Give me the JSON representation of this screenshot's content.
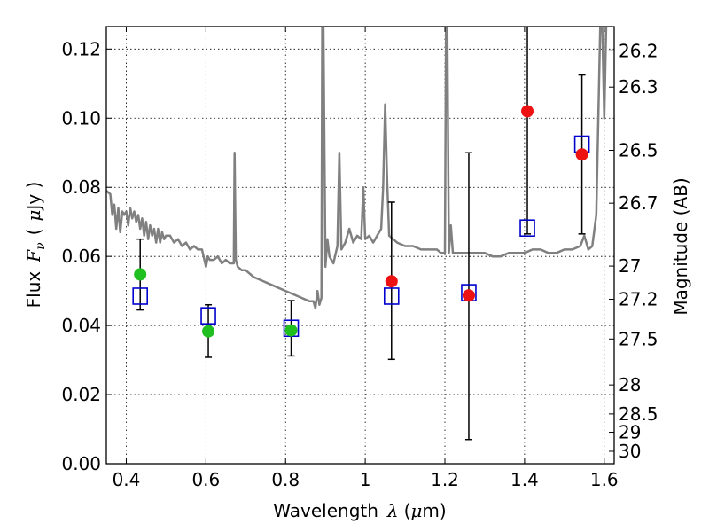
{
  "chart_data": {
    "type": "scatter",
    "xlabel_main": "Wavelength",
    "xlabel_symbol": "λ",
    "xlabel_unit_open": "(",
    "xlabel_unit_mu": "μ",
    "xlabel_unit_rest": "m)",
    "ylabel_main": "Flux",
    "ylabel_symbol": "F",
    "ylabel_subscript": "ν",
    "ylabel_unit_open": "(",
    "ylabel_unit_mu": "μ",
    "ylabel_unit_rest": "Jy )",
    "y2label": "Magnitude (AB)",
    "xlim": [
      0.35,
      1.625
    ],
    "ylim": [
      0.0,
      0.1265
    ],
    "grid": true,
    "x_ticks": [
      0.4,
      0.6,
      0.8,
      1.0,
      1.2,
      1.4,
      1.6
    ],
    "x_tick_labels": [
      "0.4",
      "0.6",
      "0.8",
      "1",
      "1.2",
      "1.4",
      "1.6"
    ],
    "y_ticks": [
      0.0,
      0.02,
      0.04,
      0.06,
      0.08,
      0.1,
      0.12
    ],
    "y_tick_labels": [
      "0.00",
      "0.02",
      "0.04",
      "0.06",
      "0.08",
      "0.10",
      "0.12"
    ],
    "mag_ticks": [
      {
        "label": "26.2",
        "flux": 0.1195
      },
      {
        "label": "26.3",
        "flux": 0.109
      },
      {
        "label": "26.5",
        "flux": 0.0907
      },
      {
        "label": "26.7",
        "flux": 0.0754
      },
      {
        "label": "27",
        "flux": 0.0572
      },
      {
        "label": "27.2",
        "flux": 0.0476
      },
      {
        "label": "27.5",
        "flux": 0.0361
      },
      {
        "label": "28",
        "flux": 0.0228
      },
      {
        "label": "28.5",
        "flux": 0.0144
      },
      {
        "label": "29",
        "flux": 0.0091
      },
      {
        "label": "30",
        "flux": 0.0036
      }
    ],
    "colors": {
      "model": "#808080",
      "green": "#1fbf1f",
      "red": "#ee1111",
      "square": "#0000cc",
      "errorbar": "#000000"
    },
    "model_spectrum": {
      "x": [
        0.35,
        0.36,
        0.365,
        0.37,
        0.375,
        0.38,
        0.385,
        0.39,
        0.395,
        0.4,
        0.405,
        0.41,
        0.415,
        0.42,
        0.425,
        0.43,
        0.435,
        0.44,
        0.445,
        0.45,
        0.455,
        0.46,
        0.465,
        0.47,
        0.475,
        0.48,
        0.485,
        0.49,
        0.495,
        0.5,
        0.51,
        0.52,
        0.53,
        0.54,
        0.55,
        0.56,
        0.57,
        0.58,
        0.59,
        0.6,
        0.605,
        0.61,
        0.62,
        0.63,
        0.64,
        0.65,
        0.66,
        0.67,
        0.672,
        0.675,
        0.68,
        0.69,
        0.7,
        0.72,
        0.74,
        0.76,
        0.78,
        0.8,
        0.82,
        0.84,
        0.86,
        0.87,
        0.875,
        0.88,
        0.885,
        0.89,
        0.892,
        0.895,
        0.9,
        0.905,
        0.91,
        0.92,
        0.93,
        0.935,
        0.94,
        0.95,
        0.96,
        0.97,
        0.98,
        0.99,
        0.995,
        1.0,
        1.01,
        1.02,
        1.03,
        1.04,
        1.045,
        1.05,
        1.055,
        1.06,
        1.07,
        1.08,
        1.1,
        1.12,
        1.14,
        1.16,
        1.18,
        1.19,
        1.2,
        1.203,
        1.206,
        1.21,
        1.215,
        1.22,
        1.24,
        1.26,
        1.28,
        1.3,
        1.32,
        1.34,
        1.36,
        1.38,
        1.4,
        1.42,
        1.44,
        1.46,
        1.48,
        1.5,
        1.52,
        1.54,
        1.55,
        1.56,
        1.57,
        1.58,
        1.59,
        1.595,
        1.6,
        1.605,
        1.61,
        1.62
      ],
      "y": [
        0.079,
        0.078,
        0.072,
        0.075,
        0.068,
        0.074,
        0.067,
        0.073,
        0.072,
        0.073,
        0.069,
        0.074,
        0.071,
        0.073,
        0.07,
        0.072,
        0.068,
        0.071,
        0.066,
        0.07,
        0.065,
        0.069,
        0.066,
        0.068,
        0.064,
        0.068,
        0.064,
        0.067,
        0.065,
        0.066,
        0.066,
        0.064,
        0.065,
        0.063,
        0.064,
        0.062,
        0.063,
        0.062,
        0.062,
        0.057,
        0.06,
        0.059,
        0.059,
        0.06,
        0.058,
        0.059,
        0.058,
        0.058,
        0.09,
        0.059,
        0.057,
        0.056,
        0.056,
        0.054,
        0.053,
        0.052,
        0.051,
        0.05,
        0.049,
        0.048,
        0.047,
        0.047,
        0.045,
        0.05,
        0.046,
        0.048,
        0.127,
        0.127,
        0.057,
        0.065,
        0.06,
        0.058,
        0.063,
        0.09,
        0.062,
        0.064,
        0.068,
        0.064,
        0.066,
        0.065,
        0.08,
        0.065,
        0.066,
        0.064,
        0.066,
        0.068,
        0.08,
        0.104,
        0.082,
        0.066,
        0.065,
        0.064,
        0.063,
        0.063,
        0.062,
        0.062,
        0.062,
        0.061,
        0.061,
        0.127,
        0.127,
        0.061,
        0.069,
        0.061,
        0.061,
        0.061,
        0.061,
        0.061,
        0.06,
        0.06,
        0.061,
        0.061,
        0.061,
        0.062,
        0.062,
        0.061,
        0.061,
        0.062,
        0.062,
        0.063,
        0.066,
        0.062,
        0.063,
        0.072,
        0.127,
        0.127,
        0.1,
        0.127,
        0.127,
        0.127
      ]
    },
    "bands": [
      {
        "x": 0.435,
        "square": 0.0485,
        "point": 0.0548,
        "point_color": "green",
        "err_low": 0.0445,
        "err_high": 0.065
      },
      {
        "x": 0.606,
        "square": 0.0428,
        "point": 0.0383,
        "point_color": "green",
        "err_low": 0.0308,
        "err_high": 0.046
      },
      {
        "x": 0.814,
        "square": 0.0392,
        "point": 0.0386,
        "point_color": "green",
        "err_low": 0.0312,
        "err_high": 0.0472
      },
      {
        "x": 1.066,
        "square": 0.0485,
        "point": 0.0528,
        "point_color": "red",
        "err_low": 0.0302,
        "err_high": 0.0757
      },
      {
        "x": 1.26,
        "square": 0.0495,
        "point": 0.0487,
        "point_color": "red",
        "err_low": 0.007,
        "err_high": 0.09
      },
      {
        "x": 1.407,
        "square": 0.0682,
        "point": 0.102,
        "point_color": "red",
        "err_low": 0.0665,
        "err_high": 0.1265
      },
      {
        "x": 1.544,
        "square": 0.0925,
        "point": 0.0895,
        "point_color": "red",
        "err_low": 0.0665,
        "err_high": 0.1125
      }
    ]
  }
}
